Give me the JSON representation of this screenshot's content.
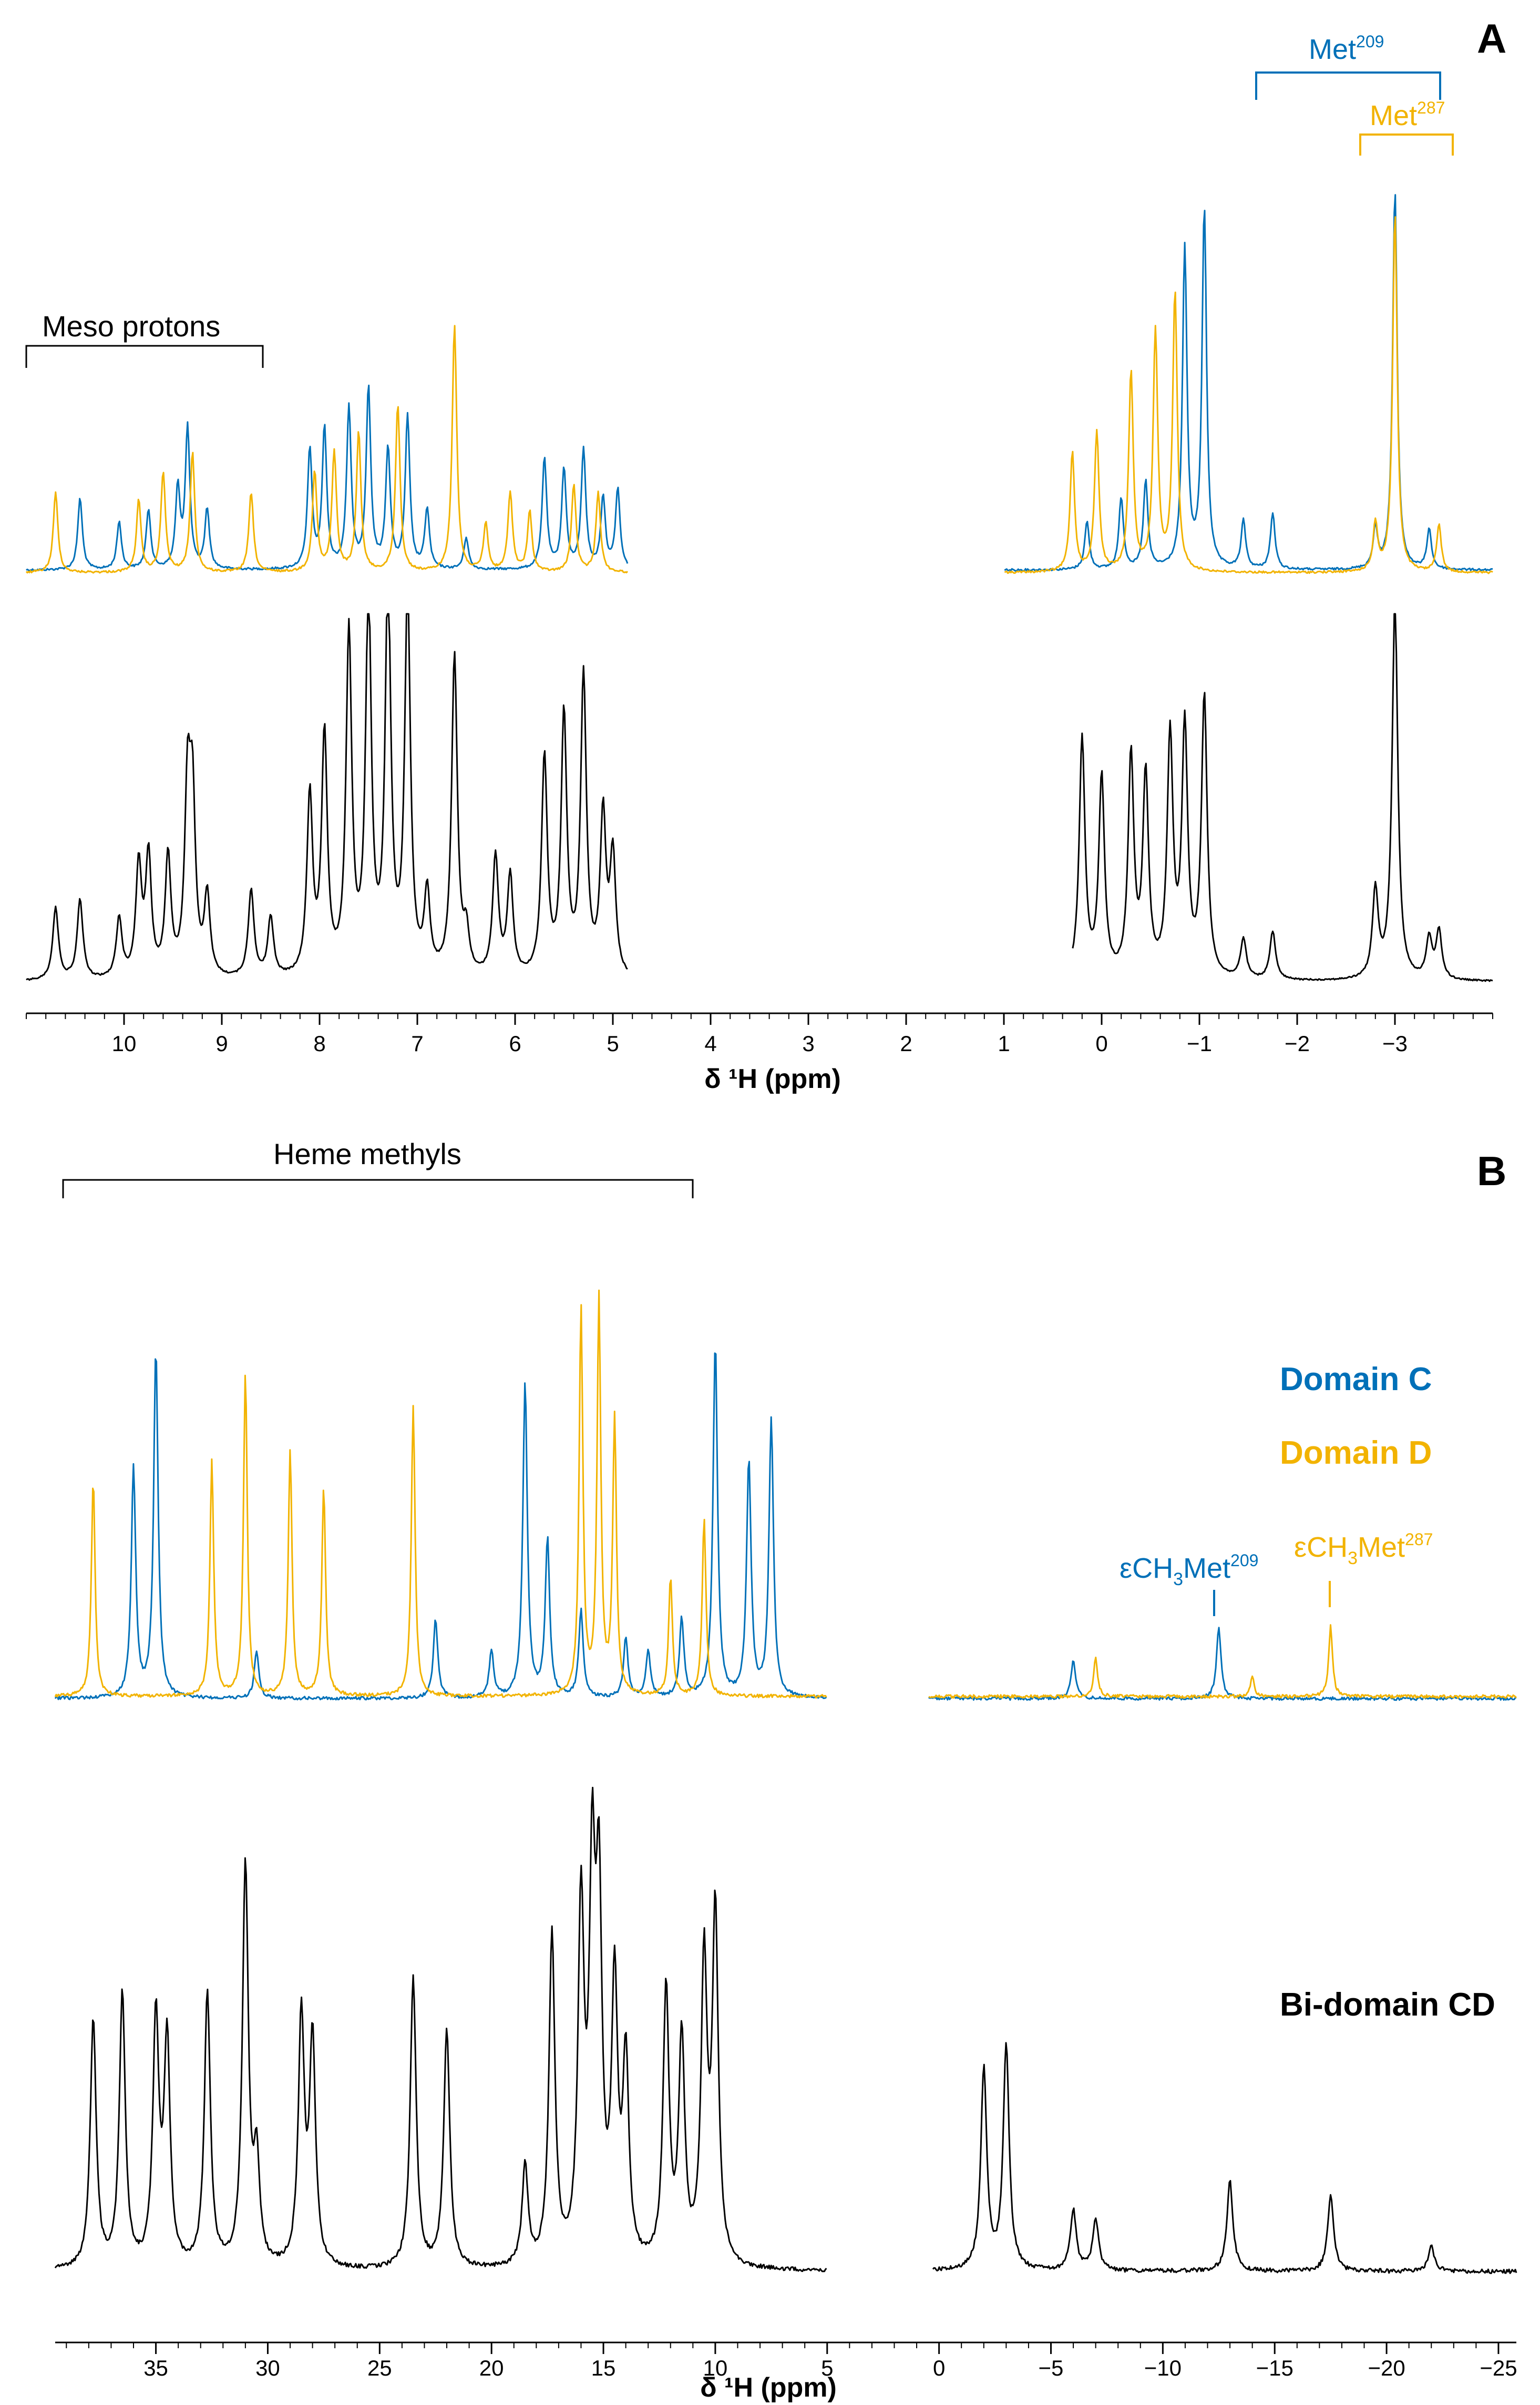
{
  "chart_data": [
    {
      "panel": "A",
      "type": "line",
      "xlabel": "δ ¹H (ppm)",
      "xlim": [
        11.0,
        -4.0
      ],
      "x_ticks": [
        "10",
        "9",
        "8",
        "7",
        "6",
        "5",
        "4",
        "3",
        "2",
        "1",
        "0",
        "−1",
        "−2",
        "−3"
      ],
      "x_tick_values": [
        10,
        9,
        8,
        7,
        6,
        5,
        4,
        3,
        2,
        1,
        0,
        -1,
        -2,
        -3
      ],
      "annotations": {
        "meso": "Meso protons",
        "met209": "Met",
        "met209_sup": "209",
        "met287": "Met",
        "met287_sup": "287"
      },
      "series": [
        {
          "name": "Domain C",
          "color": "#0070b8",
          "cut_regions": [
            [
              4.85,
              1.0
            ]
          ],
          "peaks": [
            [
              10.45,
              0.18
            ],
            [
              10.05,
              0.12
            ],
            [
              9.75,
              0.15
            ],
            [
              9.45,
              0.2
            ],
            [
              9.35,
              0.35
            ],
            [
              9.15,
              0.15
            ],
            [
              8.1,
              0.3
            ],
            [
              7.95,
              0.35
            ],
            [
              7.7,
              0.4
            ],
            [
              7.5,
              0.45
            ],
            [
              7.3,
              0.3
            ],
            [
              7.1,
              0.38
            ],
            [
              6.9,
              0.15
            ],
            [
              6.5,
              0.08
            ],
            [
              5.7,
              0.28
            ],
            [
              5.5,
              0.25
            ],
            [
              5.3,
              0.3
            ],
            [
              5.1,
              0.18
            ],
            [
              4.95,
              0.2
            ],
            [
              0.15,
              0.12
            ],
            [
              -0.2,
              0.18
            ],
            [
              -0.45,
              0.22
            ],
            [
              -0.85,
              0.8
            ],
            [
              -1.05,
              0.9
            ],
            [
              -1.45,
              0.12
            ],
            [
              -1.75,
              0.14
            ],
            [
              -2.8,
              0.1
            ],
            [
              -3.0,
              0.95
            ],
            [
              -3.35,
              0.1
            ]
          ]
        },
        {
          "name": "Domain D",
          "color": "#f2b300",
          "cut_regions": [
            [
              4.85,
              1.0
            ]
          ],
          "peaks": [
            [
              10.7,
              0.2
            ],
            [
              9.85,
              0.18
            ],
            [
              9.6,
              0.25
            ],
            [
              9.3,
              0.3
            ],
            [
              8.7,
              0.2
            ],
            [
              8.05,
              0.25
            ],
            [
              7.85,
              0.3
            ],
            [
              7.6,
              0.35
            ],
            [
              7.2,
              0.42
            ],
            [
              6.62,
              0.62
            ],
            [
              6.3,
              0.12
            ],
            [
              6.05,
              0.2
            ],
            [
              5.85,
              0.15
            ],
            [
              5.4,
              0.22
            ],
            [
              5.15,
              0.2
            ],
            [
              0.3,
              0.3
            ],
            [
              0.05,
              0.35
            ],
            [
              -0.3,
              0.5
            ],
            [
              -0.55,
              0.6
            ],
            [
              -0.75,
              0.7
            ],
            [
              -2.8,
              0.12
            ],
            [
              -3.0,
              0.9
            ],
            [
              -3.45,
              0.12
            ]
          ]
        },
        {
          "name": "Bi-domain CD",
          "color": "#000000",
          "cut_regions": [
            [
              4.85,
              0.3
            ]
          ],
          "peaks": [
            [
              10.7,
              0.18
            ],
            [
              10.45,
              0.2
            ],
            [
              10.05,
              0.15
            ],
            [
              9.85,
              0.28
            ],
            [
              9.75,
              0.3
            ],
            [
              9.55,
              0.3
            ],
            [
              9.35,
              0.45
            ],
            [
              9.3,
              0.42
            ],
            [
              9.15,
              0.2
            ],
            [
              8.7,
              0.22
            ],
            [
              8.5,
              0.15
            ],
            [
              8.1,
              0.45
            ],
            [
              7.95,
              0.6
            ],
            [
              7.7,
              0.85
            ],
            [
              7.5,
              0.95
            ],
            [
              7.3,
              0.98
            ],
            [
              7.1,
              0.95
            ],
            [
              6.62,
              0.8
            ],
            [
              6.9,
              0.2
            ],
            [
              6.5,
              0.1
            ],
            [
              6.2,
              0.3
            ],
            [
              6.05,
              0.25
            ],
            [
              5.7,
              0.55
            ],
            [
              5.5,
              0.65
            ],
            [
              5.3,
              0.75
            ],
            [
              5.1,
              0.4
            ],
            [
              5.0,
              0.3
            ],
            [
              0.2,
              0.6
            ],
            [
              0.0,
              0.5
            ],
            [
              -0.3,
              0.55
            ],
            [
              -0.45,
              0.5
            ],
            [
              -0.7,
              0.6
            ],
            [
              -0.85,
              0.62
            ],
            [
              -1.05,
              0.7
            ],
            [
              -1.45,
              0.1
            ],
            [
              -1.75,
              0.12
            ],
            [
              -2.8,
              0.22
            ],
            [
              -3.0,
              0.95
            ],
            [
              -3.35,
              0.1
            ],
            [
              -3.45,
              0.12
            ]
          ]
        }
      ]
    },
    {
      "panel": "B",
      "type": "line",
      "xlabel": "δ ¹H (ppm)",
      "xlim": [
        39.5,
        -25.8
      ],
      "x_ticks": [
        "35",
        "30",
        "25",
        "20",
        "15",
        "10",
        "5",
        "0",
        "−5",
        "−10",
        "−15",
        "−20",
        "−25"
      ],
      "x_tick_values": [
        35,
        30,
        25,
        20,
        15,
        10,
        5,
        0,
        -5,
        -10,
        -15,
        -20,
        -25
      ],
      "annotations": {
        "heme": "Heme methyls",
        "ecm209_pre": "εCH",
        "ecm209_sub": "3",
        "ecm209_mid": "Met",
        "ecm209_sup": "209",
        "ecm287_pre": "εCH",
        "ecm287_sub": "3",
        "ecm287_mid": "Met",
        "ecm287_sup": "287"
      },
      "legend": {
        "domain_c": "Domain C",
        "domain_d": "Domain D",
        "bidomain": "Bi-domain CD"
      },
      "series": [
        {
          "name": "Domain C",
          "color": "#0070b8",
          "cut_regions": [
            [
              5.0,
              0.5
            ]
          ],
          "peaks": [
            [
              35.0,
              0.88
            ],
            [
              36.0,
              0.58
            ],
            [
              30.5,
              0.12
            ],
            [
              22.5,
              0.2
            ],
            [
              20.0,
              0.12
            ],
            [
              18.5,
              0.8
            ],
            [
              17.5,
              0.4
            ],
            [
              16.0,
              0.22
            ],
            [
              14.0,
              0.15
            ],
            [
              13.0,
              0.12
            ],
            [
              11.5,
              0.2
            ],
            [
              10.0,
              0.9
            ],
            [
              8.5,
              0.6
            ],
            [
              7.5,
              0.7
            ],
            [
              -6.0,
              0.1
            ],
            [
              -12.5,
              0.18
            ]
          ]
        },
        {
          "name": "Domain D",
          "color": "#f2b300",
          "cut_regions": [
            [
              5.0,
              0.5
            ]
          ],
          "peaks": [
            [
              37.8,
              0.55
            ],
            [
              32.5,
              0.6
            ],
            [
              31.0,
              0.82
            ],
            [
              29.0,
              0.62
            ],
            [
              27.5,
              0.53
            ],
            [
              23.5,
              0.74
            ],
            [
              16.0,
              0.98
            ],
            [
              15.2,
              1.0
            ],
            [
              14.5,
              0.7
            ],
            [
              12.0,
              0.3
            ],
            [
              10.5,
              0.45
            ],
            [
              -7.0,
              0.1
            ],
            [
              -14.0,
              0.05
            ],
            [
              -17.5,
              0.18
            ]
          ]
        },
        {
          "name": "Bi-domain CD",
          "color": "#000000",
          "cut_regions": [
            [
              5.0,
              0.3
            ]
          ],
          "peaks": [
            [
              37.8,
              0.5
            ],
            [
              36.5,
              0.55
            ],
            [
              35.0,
              0.5
            ],
            [
              34.5,
              0.45
            ],
            [
              32.7,
              0.55
            ],
            [
              31.0,
              0.8
            ],
            [
              30.5,
              0.2
            ],
            [
              28.5,
              0.5
            ],
            [
              28.0,
              0.45
            ],
            [
              23.5,
              0.58
            ],
            [
              22.0,
              0.48
            ],
            [
              18.5,
              0.2
            ],
            [
              17.3,
              0.66
            ],
            [
              16.0,
              0.7
            ],
            [
              15.5,
              0.72
            ],
            [
              15.2,
              0.68
            ],
            [
              14.5,
              0.55
            ],
            [
              14.0,
              0.4
            ],
            [
              12.2,
              0.55
            ],
            [
              11.5,
              0.45
            ],
            [
              10.5,
              0.6
            ],
            [
              10.0,
              0.7
            ],
            [
              -2.0,
              0.4
            ],
            [
              -3.0,
              0.45
            ],
            [
              -6.0,
              0.12
            ],
            [
              -7.0,
              0.1
            ],
            [
              -13.0,
              0.18
            ],
            [
              -17.5,
              0.15
            ],
            [
              -22.0,
              0.05
            ]
          ]
        }
      ]
    }
  ]
}
